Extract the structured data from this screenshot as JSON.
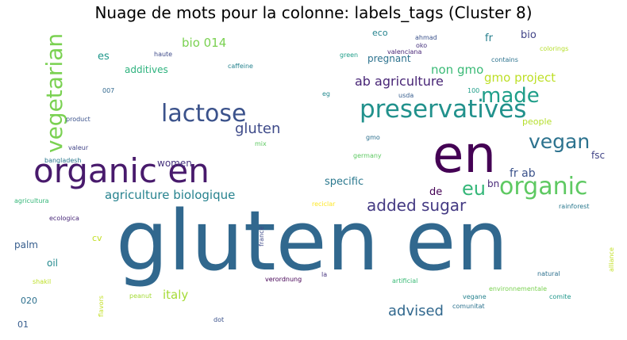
{
  "title": "Nuage de mots pour la colonne: labels_tags (Cluster 8)",
  "chart_data": {
    "type": "wordcloud",
    "title": "Nuage de mots pour la colonne: labels_tags (Cluster 8)",
    "words": [
      {
        "text": "gluten en",
        "weight": 100,
        "color": "#31688e"
      },
      {
        "text": "en",
        "weight": 62,
        "color": "#440154"
      },
      {
        "text": "organic en",
        "weight": 42,
        "color": "#481a6c"
      },
      {
        "text": "preservatives",
        "weight": 32,
        "color": "#21918c"
      },
      {
        "text": "lactose",
        "weight": 30,
        "color": "#3b528b"
      },
      {
        "text": "organic",
        "weight": 30,
        "color": "#5ec962"
      },
      {
        "text": "vegetarian",
        "weight": 28,
        "color": "#7ad151"
      },
      {
        "text": "made",
        "weight": 26,
        "color": "#1f9e89"
      },
      {
        "text": "vegan",
        "weight": 26,
        "color": "#2c728e"
      },
      {
        "text": "eu",
        "weight": 24,
        "color": "#35b779"
      },
      {
        "text": "added sugar",
        "weight": 22,
        "color": "#443a83"
      },
      {
        "text": "gluten",
        "weight": 18,
        "color": "#3e4a89"
      },
      {
        "text": "advised",
        "weight": 18,
        "color": "#31688e"
      },
      {
        "text": "ab agriculture",
        "weight": 16,
        "color": "#482576"
      },
      {
        "text": "gmo project",
        "weight": 16,
        "color": "#bddf26"
      },
      {
        "text": "agriculture biologique",
        "weight": 15,
        "color": "#26828e"
      },
      {
        "text": "non gmo",
        "weight": 15,
        "color": "#3aba76"
      },
      {
        "text": "italy",
        "weight": 15,
        "color": "#a5db36"
      },
      {
        "text": "bio 014",
        "weight": 14,
        "color": "#7ad151"
      },
      {
        "text": "fr ab",
        "weight": 14,
        "color": "#3b528b"
      },
      {
        "text": "specific",
        "weight": 13,
        "color": "#2a788e"
      },
      {
        "text": "fr",
        "weight": 13,
        "color": "#277f8e"
      },
      {
        "text": "bio",
        "weight": 13,
        "color": "#404387"
      },
      {
        "text": "de",
        "weight": 12,
        "color": "#440154"
      },
      {
        "text": "fsc",
        "weight": 12,
        "color": "#414487"
      },
      {
        "text": "additives",
        "weight": 12,
        "color": "#2db27d"
      },
      {
        "text": "es",
        "weight": 12,
        "color": "#1f978b"
      },
      {
        "text": "women",
        "weight": 12,
        "color": "#46337e"
      },
      {
        "text": "pregnant",
        "weight": 12,
        "color": "#2c728e"
      },
      {
        "text": "people",
        "weight": 11,
        "color": "#b5de2b"
      },
      {
        "text": "oil",
        "weight": 12,
        "color": "#23898e"
      },
      {
        "text": "palm",
        "weight": 12,
        "color": "#365d8d"
      },
      {
        "text": "bn",
        "weight": 11,
        "color": "#482878"
      },
      {
        "text": "020",
        "weight": 11,
        "color": "#2d708e"
      },
      {
        "text": "01",
        "weight": 11,
        "color": "#365c8d"
      },
      {
        "text": "cv",
        "weight": 11,
        "color": "#c2df23"
      },
      {
        "text": "eco",
        "weight": 10,
        "color": "#25838e"
      },
      {
        "text": "ahmad",
        "weight": 7,
        "color": "#3b528b"
      },
      {
        "text": "oko",
        "weight": 7,
        "color": "#46337e"
      },
      {
        "text": "valenciana",
        "weight": 7,
        "color": "#482576"
      },
      {
        "text": "green",
        "weight": 7,
        "color": "#1f9e89"
      },
      {
        "text": "contains",
        "weight": 7,
        "color": "#2c728e"
      },
      {
        "text": "colorings",
        "weight": 7,
        "color": "#b5de2b"
      },
      {
        "text": "haute",
        "weight": 7,
        "color": "#3e4a89"
      },
      {
        "text": "caffeine",
        "weight": 7,
        "color": "#26828e"
      },
      {
        "text": "007",
        "weight": 7,
        "color": "#31688e"
      },
      {
        "text": "product",
        "weight": 7,
        "color": "#3b528b"
      },
      {
        "text": "valeur",
        "weight": 7,
        "color": "#404387"
      },
      {
        "text": "mix",
        "weight": 7,
        "color": "#5ec962"
      },
      {
        "text": "bangladesh",
        "weight": 7,
        "color": "#2a788e"
      },
      {
        "text": "agricultura",
        "weight": 7,
        "color": "#35b779"
      },
      {
        "text": "ecologica",
        "weight": 7,
        "color": "#482878"
      },
      {
        "text": "shakil",
        "weight": 7,
        "color": "#bddf26"
      },
      {
        "text": "peanut",
        "weight": 7,
        "color": "#a5db36"
      },
      {
        "text": "flavors",
        "weight": 7,
        "color": "#c2df23"
      },
      {
        "text": "dot",
        "weight": 7,
        "color": "#3b528b"
      },
      {
        "text": "verordnung",
        "weight": 7,
        "color": "#440154"
      },
      {
        "text": "la",
        "weight": 7,
        "color": "#46337e"
      },
      {
        "text": "france",
        "weight": 7,
        "color": "#3e4a89"
      },
      {
        "text": "reciclar",
        "weight": 7,
        "color": "#fde725"
      },
      {
        "text": "artificial",
        "weight": 7,
        "color": "#3aba76"
      },
      {
        "text": "natural",
        "weight": 7,
        "color": "#2d708e"
      },
      {
        "text": "environnementale",
        "weight": 7,
        "color": "#7ad151"
      },
      {
        "text": "vegane",
        "weight": 7,
        "color": "#26828e"
      },
      {
        "text": "comunitat",
        "weight": 7,
        "color": "#2c728e"
      },
      {
        "text": "comite",
        "weight": 7,
        "color": "#1f978b"
      },
      {
        "text": "rainforest",
        "weight": 7,
        "color": "#2a788e"
      },
      {
        "text": "alliance",
        "weight": 7,
        "color": "#c2df23"
      },
      {
        "text": "germany",
        "weight": 7,
        "color": "#5ec962"
      },
      {
        "text": "gmo",
        "weight": 7,
        "color": "#2d708e"
      },
      {
        "text": "usda",
        "weight": 7,
        "color": "#365d8d"
      },
      {
        "text": "eg",
        "weight": 7,
        "color": "#23898e"
      },
      {
        "text": "100",
        "weight": 7,
        "color": "#1f9e89"
      }
    ]
  }
}
